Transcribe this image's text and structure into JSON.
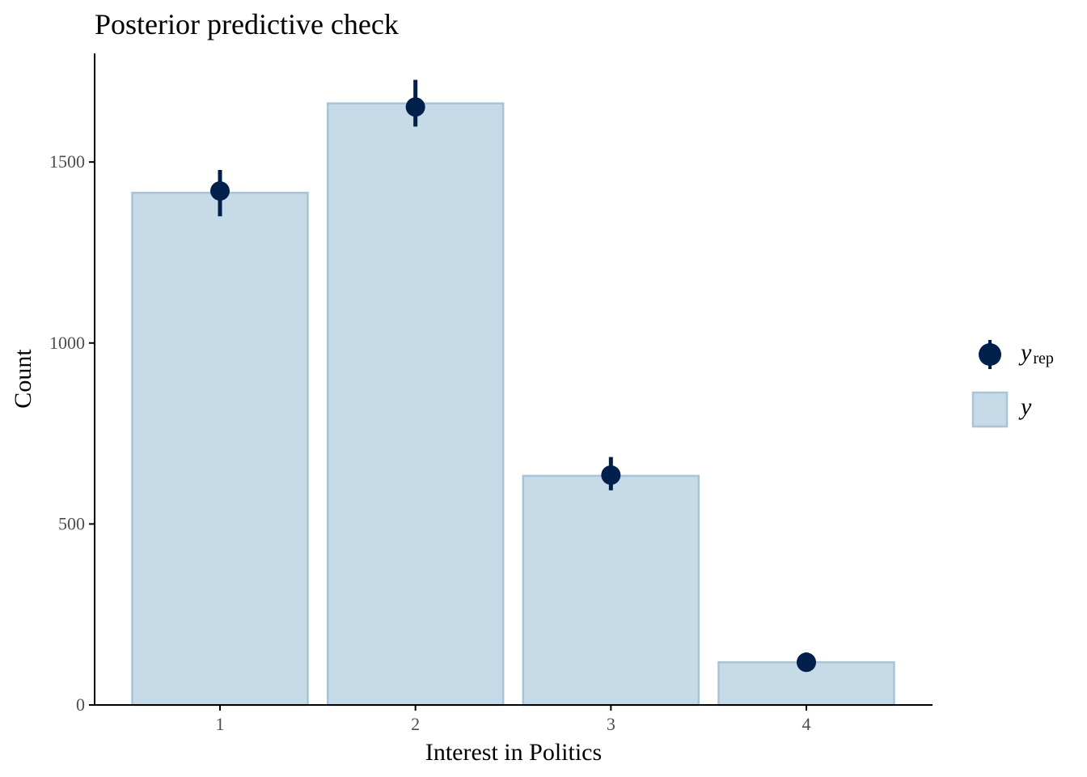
{
  "chart_data": {
    "type": "bar",
    "title": "Posterior predictive check",
    "xlabel": "Interest in Politics",
    "ylabel": "Count",
    "categories": [
      "1",
      "2",
      "3",
      "4"
    ],
    "ylim": [
      0,
      1800
    ],
    "yticks": [
      0,
      500,
      1000,
      1500
    ],
    "ytick_labels": [
      "0",
      "500",
      "1000",
      "1500"
    ],
    "grid": false,
    "legend_position": "right",
    "series": [
      {
        "name": "y",
        "kind": "bar",
        "values": [
          1415,
          1662,
          633,
          118
        ],
        "fill": "#c6dae8",
        "stroke": "#a8c4d8"
      },
      {
        "name": "y_rep",
        "kind": "pointrange",
        "values": [
          1420,
          1652,
          635,
          118
        ],
        "lower": [
          1350,
          1598,
          593,
          103
        ],
        "upper": [
          1478,
          1727,
          685,
          145
        ],
        "color": "#011f4b"
      }
    ],
    "legend": [
      {
        "label": "y",
        "subscript": "rep",
        "marker": "point"
      },
      {
        "label": "y",
        "subscript": "",
        "marker": "box"
      }
    ]
  }
}
